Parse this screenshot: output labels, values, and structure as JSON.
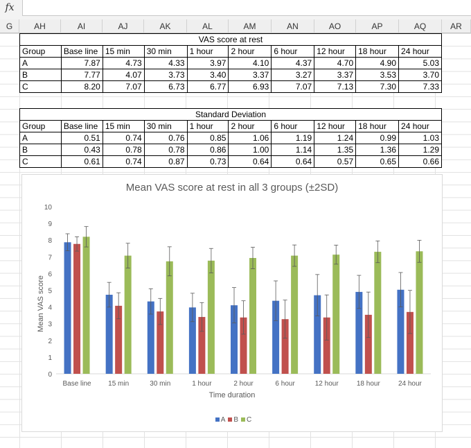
{
  "formula_bar": {
    "fx_label": "fx",
    "value": ""
  },
  "column_headers": [
    "G",
    "AH",
    "AI",
    "AJ",
    "AK",
    "AL",
    "AM",
    "AN",
    "AO",
    "AP",
    "AQ",
    "AR"
  ],
  "tables": [
    {
      "caption": "VAS score at rest",
      "header": [
        "Group",
        "Base line",
        "15 min",
        "30 min",
        "1 hour",
        "2 hour",
        "6 hour",
        "12 hour",
        "18 hour",
        "24 hour"
      ],
      "rows": [
        [
          "A",
          "7.87",
          "4.73",
          "4.33",
          "3.97",
          "4.10",
          "4.37",
          "4.70",
          "4.90",
          "5.03"
        ],
        [
          "B",
          "7.77",
          "4.07",
          "3.73",
          "3.40",
          "3.37",
          "3.27",
          "3.37",
          "3.53",
          "3.70"
        ],
        [
          "C",
          "8.20",
          "7.07",
          "6.73",
          "6.77",
          "6.93",
          "7.07",
          "7.13",
          "7.30",
          "7.33"
        ]
      ]
    },
    {
      "caption": "Standard Deviation",
      "header": [
        "Group",
        "Base line",
        "15 min",
        "30 min",
        "1 hour",
        "2 hour",
        "6 hour",
        "12 hour",
        "18 hour",
        "24 hour"
      ],
      "rows": [
        [
          "A",
          "0.51",
          "0.74",
          "0.76",
          "0.85",
          "1.06",
          "1.19",
          "1.24",
          "0.99",
          "1.03"
        ],
        [
          "B",
          "0.43",
          "0.78",
          "0.78",
          "0.86",
          "1.00",
          "1.14",
          "1.35",
          "1.36",
          "1.29"
        ],
        [
          "C",
          "0.61",
          "0.74",
          "0.87",
          "0.73",
          "0.64",
          "0.64",
          "0.57",
          "0.65",
          "0.66"
        ]
      ]
    }
  ],
  "chart_data": {
    "type": "bar",
    "title": "Mean VAS score at rest in all 3 groups (±2SD)",
    "xlabel": "Time duration",
    "ylabel": "Mean VAS score",
    "ylim": [
      0,
      10
    ],
    "yticks": [
      0,
      1,
      2,
      3,
      4,
      5,
      6,
      7,
      8,
      9,
      10
    ],
    "grid": false,
    "legend_position": "bottom",
    "categories": [
      "Base line",
      "15 min",
      "30 min",
      "1 hour",
      "2 hour",
      "6 hour",
      "12 hour",
      "18 hour",
      "24 hour"
    ],
    "series": [
      {
        "name": "A",
        "color": "#4472c4",
        "values": [
          7.87,
          4.73,
          4.33,
          3.97,
          4.1,
          4.37,
          4.7,
          4.9,
          5.03
        ],
        "errors": [
          0.51,
          0.74,
          0.76,
          0.85,
          1.06,
          1.19,
          1.24,
          0.99,
          1.03
        ]
      },
      {
        "name": "B",
        "color": "#c0504d",
        "values": [
          7.77,
          4.07,
          3.73,
          3.4,
          3.37,
          3.27,
          3.37,
          3.53,
          3.7
        ],
        "errors": [
          0.43,
          0.78,
          0.78,
          0.86,
          1.0,
          1.14,
          1.35,
          1.36,
          1.29
        ]
      },
      {
        "name": "C",
        "color": "#9bbb59",
        "values": [
          8.2,
          7.07,
          6.73,
          6.77,
          6.93,
          7.07,
          7.13,
          7.3,
          7.33
        ],
        "errors": [
          0.61,
          0.74,
          0.87,
          0.73,
          0.64,
          0.64,
          0.57,
          0.65,
          0.66
        ]
      }
    ]
  }
}
